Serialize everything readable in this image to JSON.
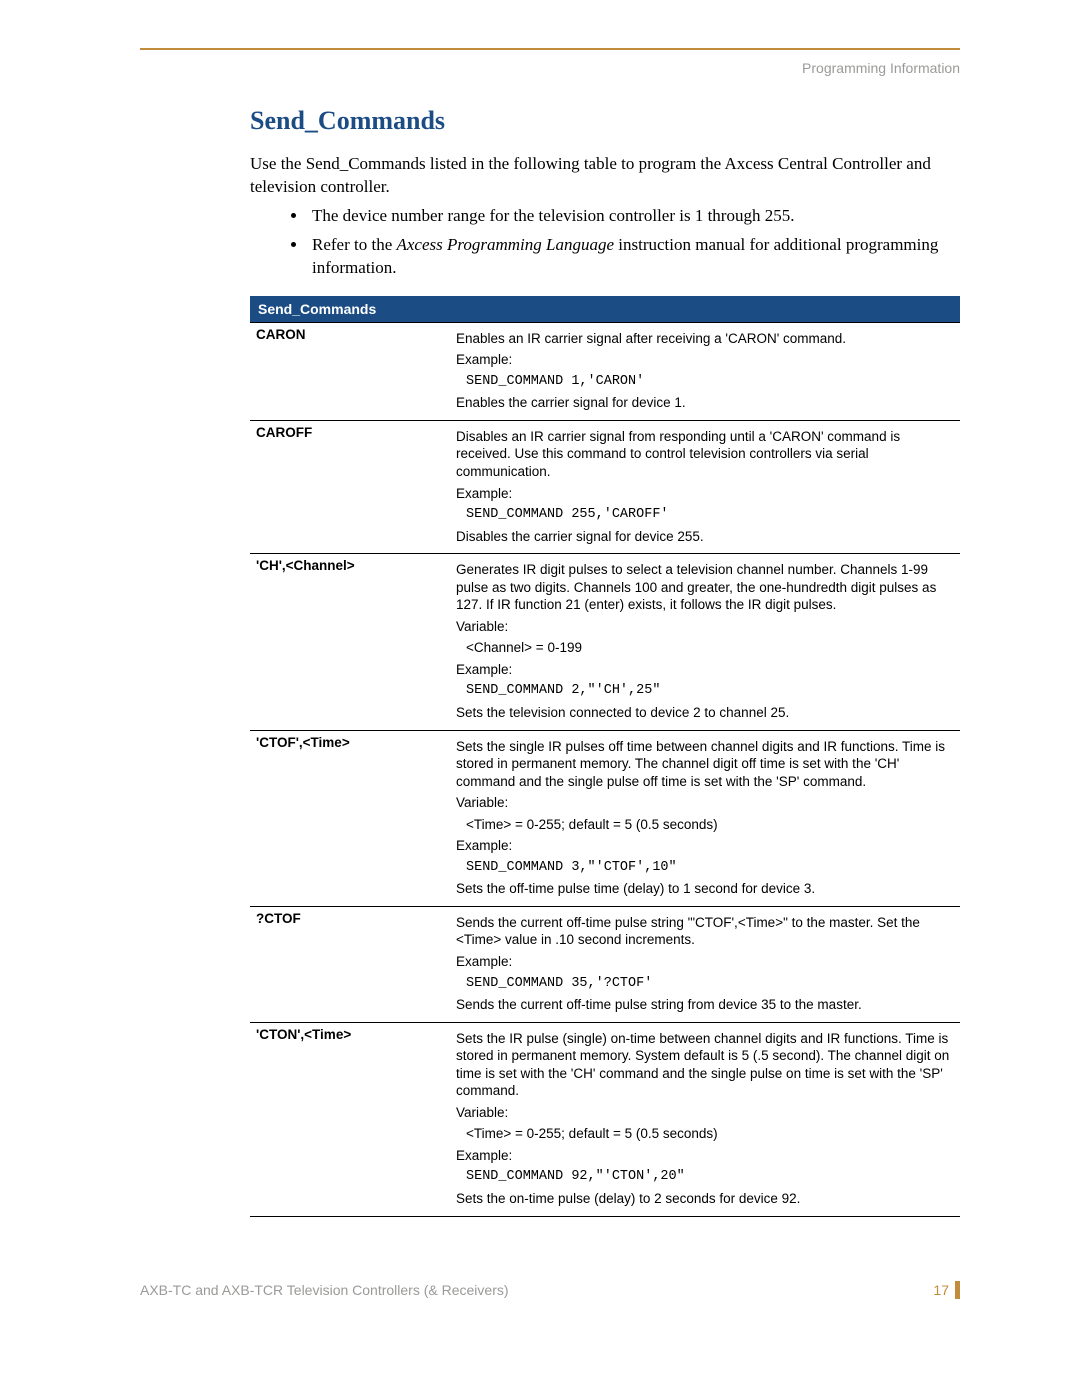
{
  "colors": {
    "top_rule": "#c18c3c",
    "heading": "#1b4c84",
    "table_header_bg": "#1b4c84",
    "footer_text": "#9a9a98",
    "page_num": "#c18c3c",
    "page_mark": "#c18c3c"
  },
  "header": {
    "section_label": "Programming Information"
  },
  "heading": "Send_Commands",
  "intro": "Use the Send_Commands listed in the following table to program the Axcess Central Controller and television controller.",
  "bullets": [
    {
      "text_pre": "The device number range for the television controller is 1 through 255."
    },
    {
      "text_pre": "Refer to the ",
      "italic": "Axcess Programming Language",
      "text_post": " instruction manual for additional programming information."
    }
  ],
  "table": {
    "title": "Send_Commands",
    "col_widths": {
      "cmd": 200
    },
    "rows": [
      {
        "cmd": "CARON",
        "paras": [
          {
            "t": "Enables an IR carrier signal after receiving a 'CARON' command."
          },
          {
            "t": "Example:"
          },
          {
            "t": "SEND_COMMAND 1,'CARON'",
            "code": true
          },
          {
            "t": "Enables the carrier signal for device 1."
          }
        ]
      },
      {
        "cmd": "CAROFF",
        "paras": [
          {
            "t": "Disables an IR carrier signal from responding until a 'CARON' command is received. Use this command to control television controllers via serial communication."
          },
          {
            "t": "Example:"
          },
          {
            "t": "SEND_COMMAND 255,'CAROFF'",
            "code": true
          },
          {
            "t": "Disables the carrier signal for device 255."
          }
        ]
      },
      {
        "cmd": "'CH',<Channel>",
        "paras": [
          {
            "t": "Generates IR digit pulses to select a television channel number. Channels 1-99 pulse as two digits. Channels 100 and greater, the one-hundredth digit pulses as 127. If IR function 21 (enter) exists, it follows the IR digit pulses."
          },
          {
            "t": "Variable:"
          },
          {
            "t": "<Channel> = 0-199",
            "indent": true
          },
          {
            "t": "Example:"
          },
          {
            "t": "SEND_COMMAND 2,\"'CH',25\"",
            "code": true
          },
          {
            "t": "Sets the television connected to device 2 to channel 25."
          }
        ]
      },
      {
        "cmd": "'CTOF',<Time>",
        "paras": [
          {
            "t": "Sets the single IR pulses off time between channel digits and IR functions. Time is stored in permanent memory. The channel digit off time is set with the 'CH' command and the single pulse off time is set with the 'SP' command."
          },
          {
            "t": "Variable:"
          },
          {
            "t": "<Time> = 0-255; default = 5 (0.5 seconds)",
            "indent": true
          },
          {
            "t": "Example:"
          },
          {
            "t": "SEND_COMMAND 3,\"'CTOF',10\"",
            "code": true
          },
          {
            "t": "Sets the off-time pulse time (delay) to 1 second for device 3."
          }
        ]
      },
      {
        "cmd": "?CTOF",
        "paras": [
          {
            "t": "Sends the current off-time pulse string '\"CTOF',<Time>\" to the master. Set the <Time> value in .10 second increments."
          },
          {
            "t": "Example:"
          },
          {
            "t": "SEND_COMMAND 35,'?CTOF'",
            "code": true
          },
          {
            "t": "Sends the current off-time pulse string from device 35 to the master."
          }
        ]
      },
      {
        "cmd": "'CTON',<Time>",
        "paras": [
          {
            "t": "Sets the IR pulse (single) on-time between channel digits and IR functions. Time is stored in permanent memory. System default is 5 (.5 second). The channel digit on time is set with the 'CH' command and the single pulse on time is set with the 'SP' command."
          },
          {
            "t": "Variable:"
          },
          {
            "t": "<Time> = 0-255; default = 5 (0.5 seconds)",
            "indent": true
          },
          {
            "t": "Example:"
          },
          {
            "t": "SEND_COMMAND 92,\"'CTON',20\"",
            "code": true
          },
          {
            "t": "Sets the on-time pulse (delay) to 2 seconds for device 92."
          }
        ]
      }
    ]
  },
  "footer": {
    "left": "AXB-TC and AXB-TCR Television Controllers (& Receivers)",
    "page_number": "17"
  }
}
